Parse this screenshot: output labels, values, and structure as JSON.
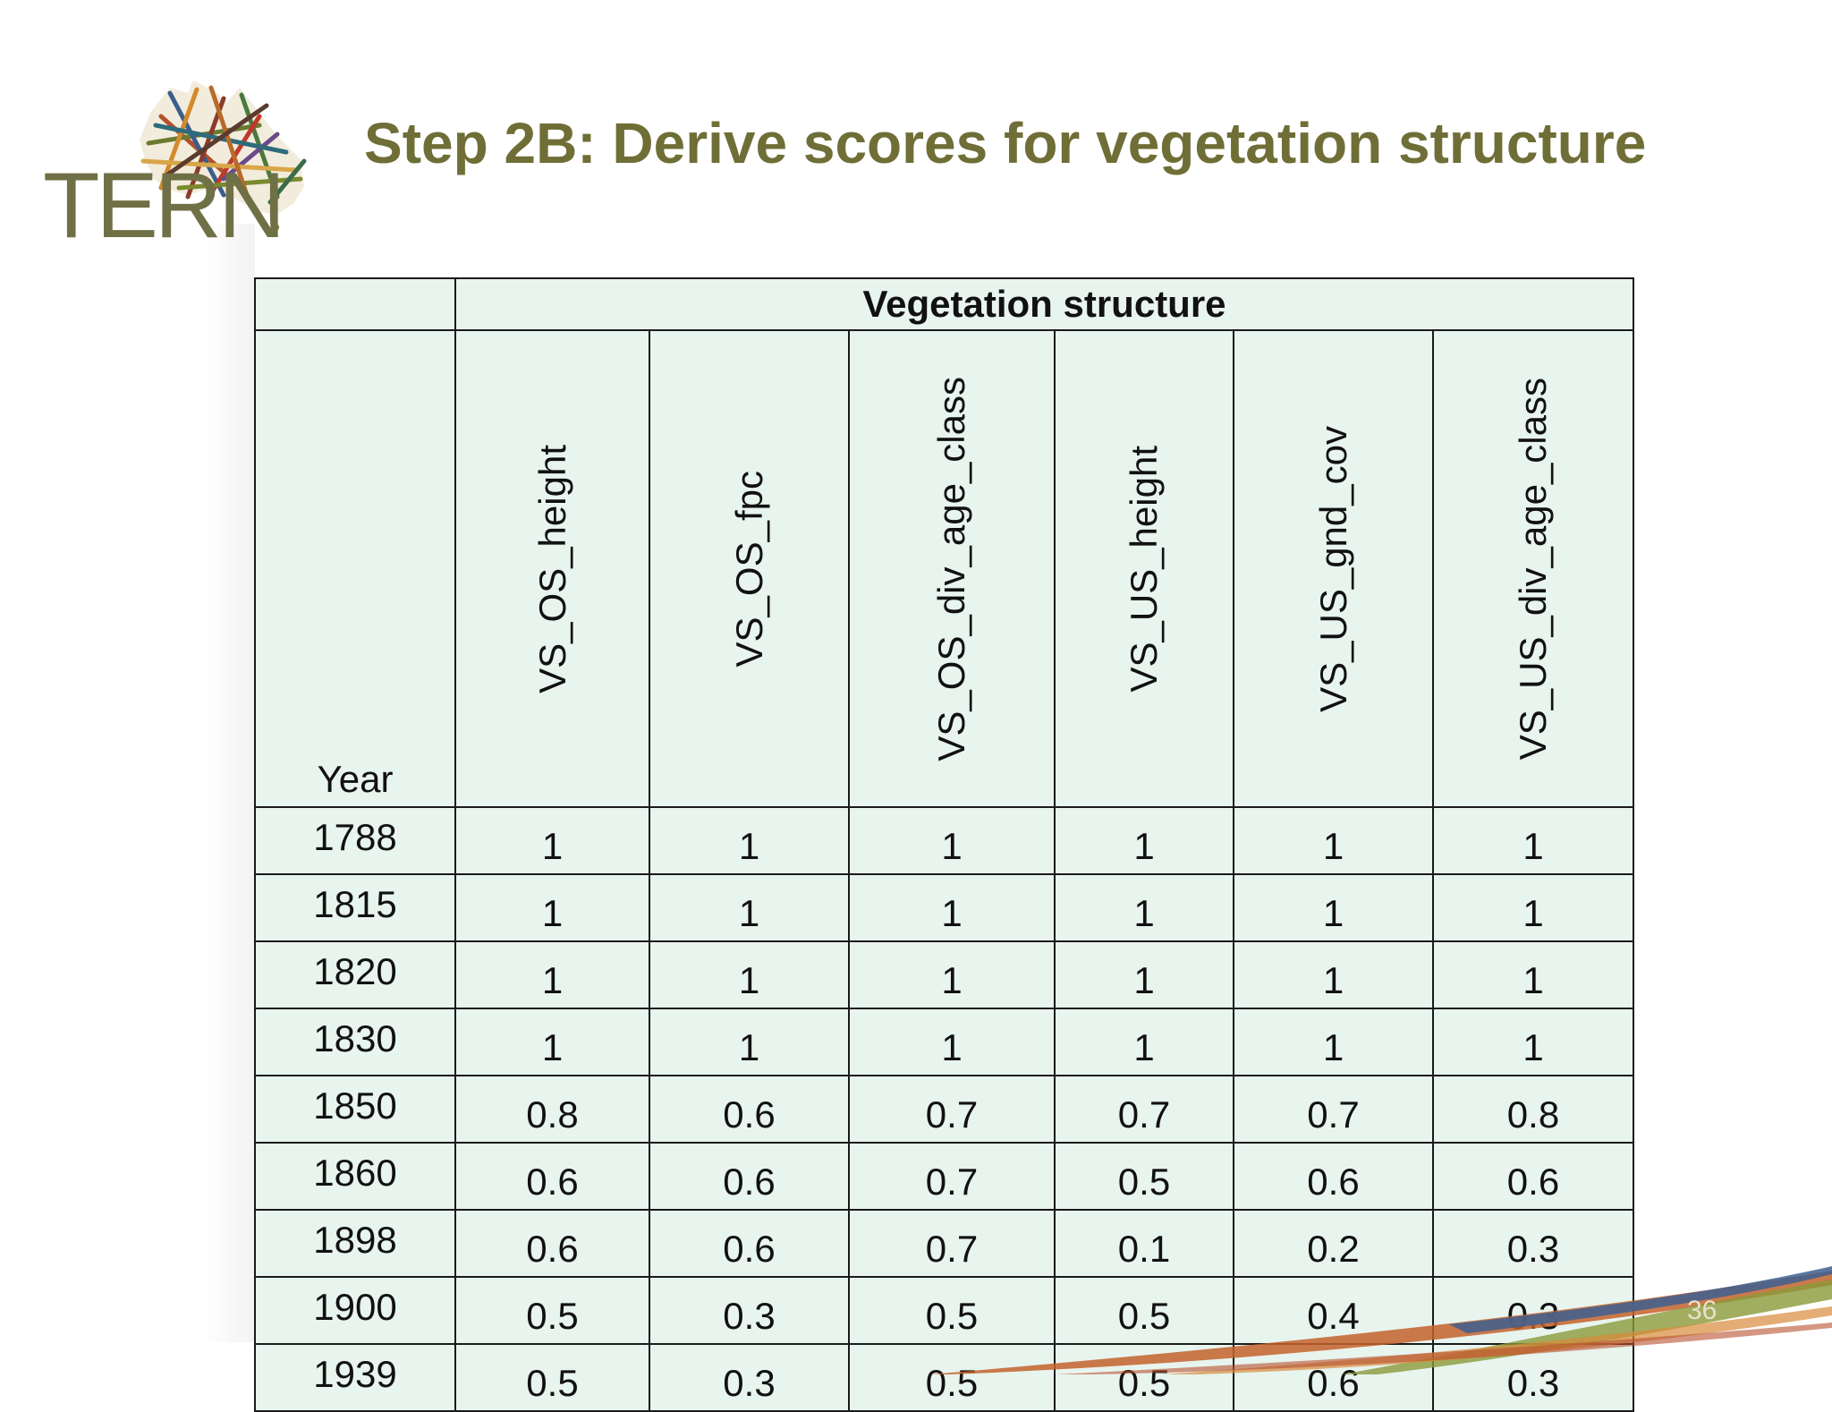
{
  "logo": {
    "text": "TERN",
    "icon": "australia-map-icon"
  },
  "slide": {
    "title": "Step 2B: Derive scores for vegetation structure",
    "page_number": "36"
  },
  "table": {
    "group_header": "Vegetation structure",
    "year_header": "Year",
    "columns": [
      "VS_OS_height",
      "VS_OS_fpc",
      "VS_OS_div_age_class",
      "VS_US_height",
      "VS_US_gnd_cov",
      "VS_US_div_age_class"
    ],
    "rows": [
      {
        "year": "1788",
        "values": [
          "1",
          "1",
          "1",
          "1",
          "1",
          "1"
        ]
      },
      {
        "year": "1815",
        "values": [
          "1",
          "1",
          "1",
          "1",
          "1",
          "1"
        ]
      },
      {
        "year": "1820",
        "values": [
          "1",
          "1",
          "1",
          "1",
          "1",
          "1"
        ]
      },
      {
        "year": "1830",
        "values": [
          "1",
          "1",
          "1",
          "1",
          "1",
          "1"
        ]
      },
      {
        "year": "1850",
        "values": [
          "0.8",
          "0.6",
          "0.7",
          "0.7",
          "0.7",
          "0.8"
        ]
      },
      {
        "year": "1860",
        "values": [
          "0.6",
          "0.6",
          "0.7",
          "0.5",
          "0.6",
          "0.6"
        ]
      },
      {
        "year": "1898",
        "values": [
          "0.6",
          "0.6",
          "0.7",
          "0.1",
          "0.2",
          "0.3"
        ]
      },
      {
        "year": "1900",
        "values": [
          "0.5",
          "0.3",
          "0.5",
          "0.5",
          "0.4",
          "0.3"
        ]
      },
      {
        "year": "1939",
        "values": [
          "0.5",
          "0.3",
          "0.5",
          "0.5",
          "0.6",
          "0.3"
        ]
      }
    ]
  },
  "colors": {
    "title": "#6f6e36",
    "logo_text": "#6f7045",
    "cell_fill": "#e8f4ee",
    "border": "#1a1a1a"
  }
}
